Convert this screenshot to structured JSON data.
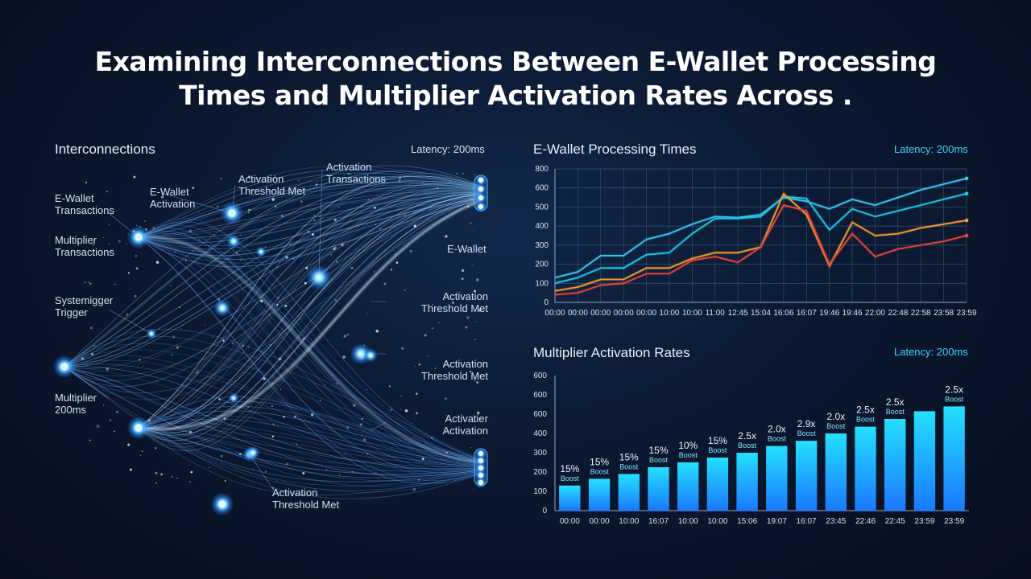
{
  "title_line1": "Examining Interconnections Between E-Wallet Processing",
  "title_line2": "Times and Multiplier Activation Rates Across .",
  "network": {
    "title": "Interconnections",
    "latency": "Latency: 200ms",
    "labels": {
      "ewallet_transactions": "E-Wallet\nTransactions",
      "ewallet_activation": "E-Wallet\nActivation",
      "activation_threshold_top": "Activation\nThreshold Met",
      "activation_transactions": "Activation\nTransactions",
      "multiplier_transactions": "Multiplier\nTransactions",
      "system_trigger": "Systemigger\nTrigger",
      "multiplier_200ms": "Multiplier\n200ms",
      "ewallet_right": "E-Wallet",
      "activation_threshold_r1": "Activation\nThreshold Met",
      "activation_threshold_r2": "Activation\nThreshold Met",
      "activatier_activation": "Activatier\nActivation",
      "activation_threshold_bottom": "Activation\nThreshold Met"
    }
  },
  "line_panel": {
    "title": "E-Wallet Processing Times",
    "latency": "Latency: 200ms"
  },
  "bar_panel": {
    "title": "Multiplier Activation Rates",
    "latency": "Latency: 200ms"
  },
  "colors": {
    "accent_cyan": "#3fd2ff",
    "line_cyan": "#38c6f4",
    "line_cyan2": "#19c9e6",
    "line_orange": "#f59a2c",
    "line_red": "#e8433a",
    "bar_gradient_top": "#24e0ff",
    "bar_gradient_bottom": "#1a78ff"
  },
  "chart_data": [
    {
      "type": "line",
      "title": "E-Wallet Processing Times",
      "x": [
        "00:00",
        "00:00",
        "00:00",
        "00:00",
        "00:00",
        "10:00",
        "10:00",
        "11:00",
        "12:45",
        "15:04",
        "16:06",
        "16:07",
        "19:46",
        "19:46",
        "22:00",
        "22:48",
        "22:58",
        "23:58",
        "23:59"
      ],
      "yticks": [
        "0",
        "100",
        "200",
        "300",
        "400",
        "500",
        "600",
        "800"
      ],
      "ylim": [
        0,
        700
      ],
      "grid": true,
      "series": [
        {
          "color": "#38c6f4",
          "values": [
            130,
            160,
            245,
            245,
            330,
            360,
            410,
            450,
            445,
            460,
            550,
            530,
            490,
            540,
            510,
            550,
            590,
            620,
            650
          ]
        },
        {
          "color": "#19c9e6",
          "values": [
            100,
            130,
            180,
            180,
            250,
            260,
            360,
            440,
            440,
            450,
            555,
            545,
            380,
            490,
            450,
            480,
            510,
            540,
            570
          ]
        },
        {
          "color": "#f59a2c",
          "values": [
            60,
            80,
            120,
            120,
            180,
            180,
            230,
            260,
            260,
            290,
            570,
            460,
            190,
            420,
            350,
            360,
            390,
            410,
            430
          ]
        },
        {
          "color": "#e8433a",
          "values": [
            40,
            50,
            90,
            100,
            150,
            150,
            220,
            240,
            210,
            290,
            510,
            480,
            200,
            360,
            240,
            280,
            300,
            320,
            350
          ]
        }
      ]
    },
    {
      "type": "bar",
      "title": "Multiplier Activation Rates",
      "categories": [
        "00:00",
        "00:00",
        "10:00",
        "16:07",
        "10:00",
        "10:00",
        "15:06",
        "19:07",
        "16:07",
        "23:45",
        "22:46",
        "22:45",
        "23:59",
        "23:59"
      ],
      "values": [
        130,
        165,
        190,
        225,
        250,
        275,
        300,
        335,
        362,
        400,
        435,
        475,
        515,
        540
      ],
      "yticks": [
        "0",
        "100",
        "200",
        "300",
        "400",
        "600",
        "600",
        "600"
      ],
      "ylim": [
        0,
        700
      ],
      "labels": [
        "15%",
        "15%",
        "15%",
        "15%",
        "10%",
        "15%",
        "2.5x",
        "2.0x",
        "2.9x",
        "2.0x",
        "2.5x",
        "2.5x",
        "",
        "2.5x"
      ],
      "sublabels": [
        "Boost",
        "Boost",
        "Boost",
        "Boost",
        "Boost",
        "Boost",
        "Boost",
        "Boost",
        "Boost",
        "Boost",
        "Boost",
        "Boost",
        "",
        "Boost"
      ]
    }
  ]
}
